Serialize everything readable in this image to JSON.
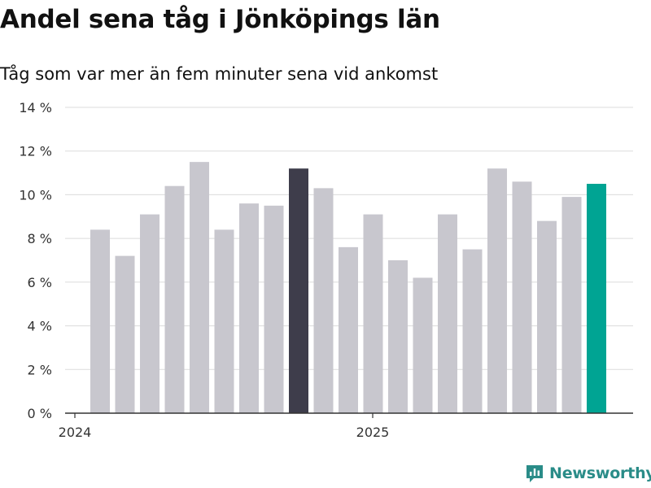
{
  "chart_data": {
    "type": "bar",
    "title": "Andel sena tåg i Jönköpings län",
    "subtitle": "Tåg som var mer än fem minuter sena vid ankomst",
    "xlabel": "",
    "ylabel": "",
    "ylim": [
      0,
      14
    ],
    "yticks": [
      0,
      2,
      4,
      6,
      8,
      10,
      12,
      14
    ],
    "ytick_labels": [
      "0 %",
      "2 %",
      "4 %",
      "6 %",
      "8 %",
      "10 %",
      "12 %",
      "14 %"
    ],
    "xtick_labels": [
      {
        "label": "2024",
        "index": 0
      },
      {
        "label": "2025",
        "index": 12
      }
    ],
    "grid": true,
    "values": [
      8.4,
      7.2,
      9.1,
      10.4,
      11.5,
      8.4,
      9.6,
      9.5,
      11.2,
      10.3,
      7.6,
      9.1,
      7.0,
      6.2,
      9.1,
      7.5,
      11.2,
      10.6,
      8.8,
      9.9,
      10.5
    ],
    "colors": {
      "default": "#c8c7ce",
      "highlight_dark": "#3e3d4b",
      "highlight_accent": "#00a493"
    },
    "highlight": {
      "dark_index": 8,
      "accent_index": 20
    }
  },
  "footer": {
    "brand": "Newsworthy",
    "brand_icon": "newsworthy-logo-icon",
    "brand_color": "#2a8c88"
  }
}
